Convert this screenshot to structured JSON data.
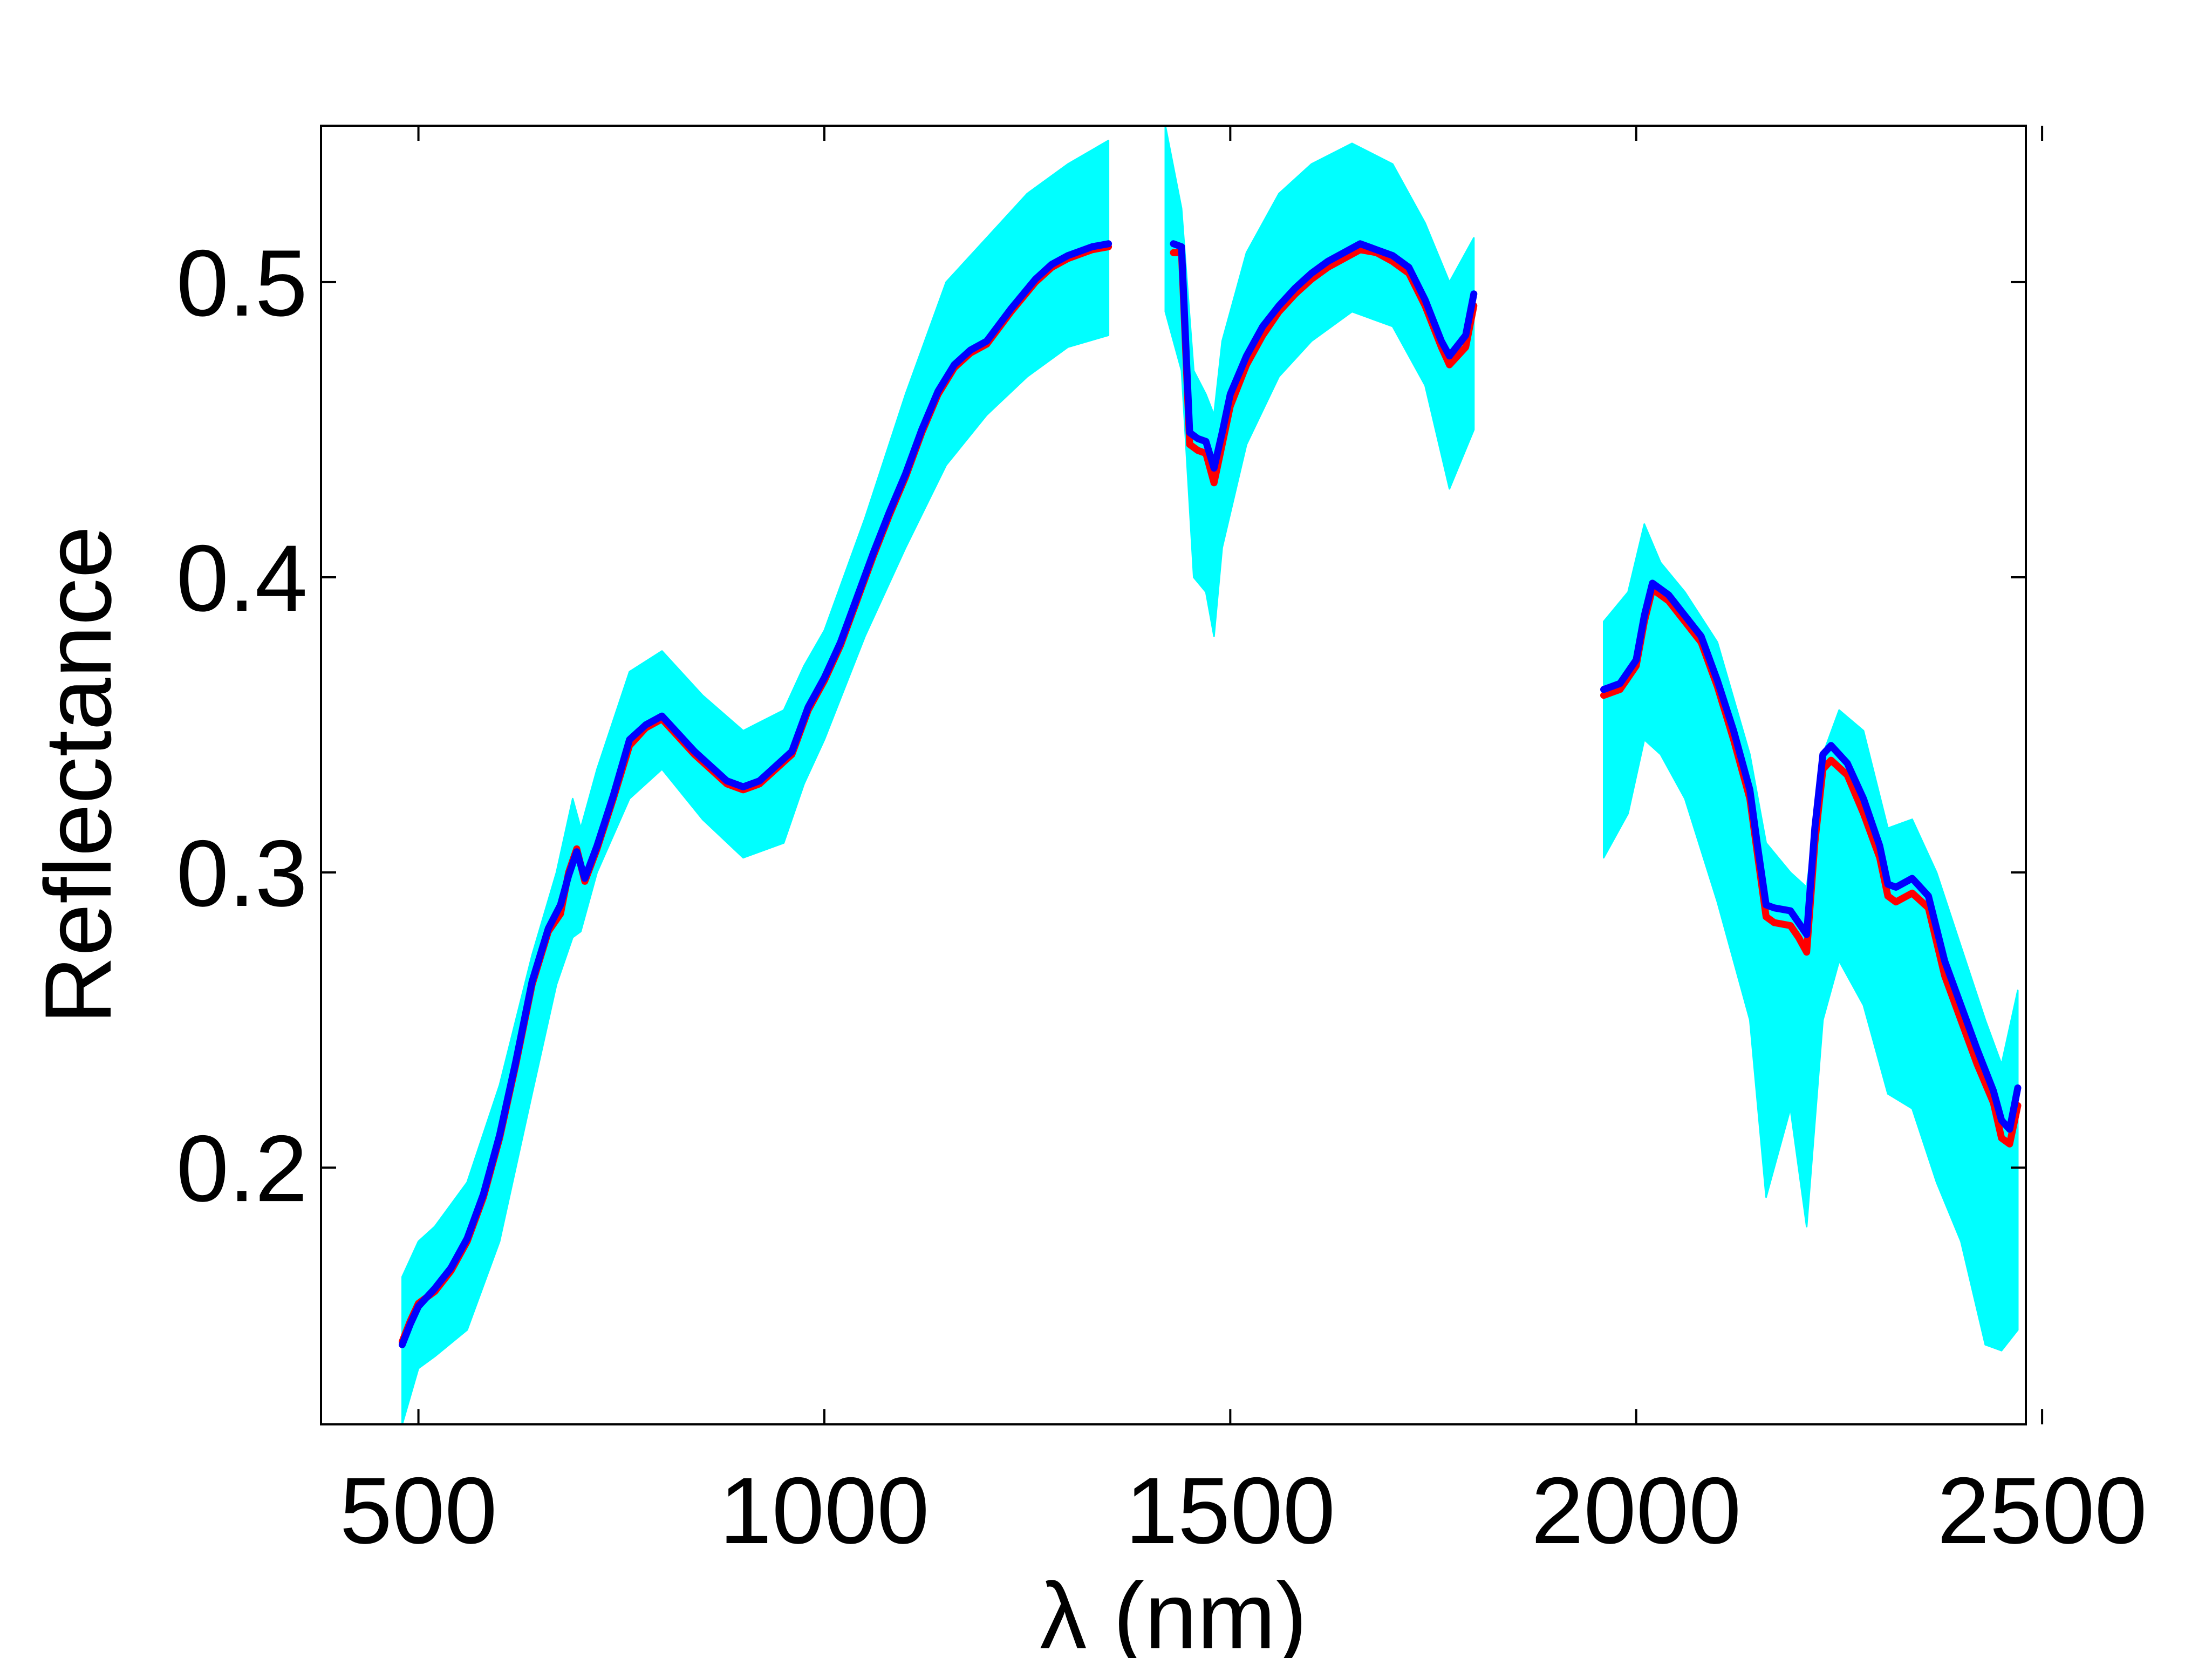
{
  "chart_data": {
    "type": "line",
    "title": "",
    "xlabel": "λ (nm)",
    "ylabel": "Reflectance",
    "xlim": [
      380,
      2480
    ],
    "ylim": [
      0.113,
      0.553
    ],
    "xticks": [
      500,
      1000,
      1500,
      2000,
      2500
    ],
    "xtick_labels": [
      "500",
      "1000",
      "1500",
      "2000",
      "2500"
    ],
    "yticks": [
      0.2,
      0.3,
      0.4,
      0.5
    ],
    "ytick_labels": [
      "0.2",
      "0.3",
      "0.4",
      "0.5"
    ],
    "grid": false,
    "legend": "none",
    "colors": {
      "band": "#00ffff",
      "red_series": "#ff0000",
      "blue_series": "#0000ff",
      "axes": "#000000"
    },
    "series": [
      {
        "color": "#00ffff",
        "style": "envelope",
        "segments": [
          {
            "x": [
              480,
              500,
              520,
              560,
              600,
              640,
              670,
              690,
              700,
              720,
              760,
              800,
              850,
              900,
              950,
              975,
              1000,
              1050,
              1100,
              1150,
              1200,
              1250,
              1300,
              1350
            ],
            "lower": [
              0.113,
              0.132,
              0.136,
              0.145,
              0.175,
              0.225,
              0.262,
              0.278,
              0.28,
              0.3,
              0.325,
              0.335,
              0.318,
              0.305,
              0.31,
              0.33,
              0.345,
              0.38,
              0.41,
              0.438,
              0.455,
              0.468,
              0.478,
              0.482
            ],
            "upper": [
              0.163,
              0.175,
              0.18,
              0.195,
              0.228,
              0.272,
              0.3,
              0.325,
              0.315,
              0.335,
              0.368,
              0.375,
              0.36,
              0.348,
              0.355,
              0.37,
              0.382,
              0.42,
              0.462,
              0.5,
              0.515,
              0.53,
              0.54,
              0.548
            ]
          },
          {
            "x": [
              1420,
              1440,
              1455,
              1470,
              1480,
              1490,
              1520,
              1560,
              1600,
              1650,
              1700,
              1740,
              1770,
              1800
            ],
            "lower": [
              0.49,
              0.47,
              0.4,
              0.395,
              0.38,
              0.41,
              0.445,
              0.468,
              0.48,
              0.49,
              0.485,
              0.465,
              0.43,
              0.45
            ],
            "upper": [
              0.553,
              0.525,
              0.47,
              0.462,
              0.455,
              0.48,
              0.51,
              0.53,
              0.54,
              0.547,
              0.54,
              0.52,
              0.5,
              0.515
            ]
          },
          {
            "x": [
              1960,
              1990,
              2010,
              2030,
              2060,
              2100,
              2140,
              2160,
              2190,
              2210,
              2230,
              2250,
              2280,
              2310,
              2340,
              2370,
              2400,
              2430,
              2450,
              2470
            ],
            "lower": [
              0.305,
              0.32,
              0.345,
              0.34,
              0.325,
              0.29,
              0.25,
              0.19,
              0.22,
              0.18,
              0.25,
              0.27,
              0.255,
              0.225,
              0.22,
              0.195,
              0.175,
              0.14,
              0.138,
              0.145
            ],
            "upper": [
              0.385,
              0.395,
              0.418,
              0.405,
              0.395,
              0.378,
              0.34,
              0.31,
              0.3,
              0.295,
              0.34,
              0.355,
              0.348,
              0.315,
              0.318,
              0.3,
              0.275,
              0.25,
              0.235,
              0.26
            ]
          }
        ]
      },
      {
        "color": "#ff0000",
        "style": "line",
        "segments": [
          {
            "x": [
              480,
              490,
              500,
              520,
              540,
              560,
              580,
              600,
              620,
              640,
              660,
              675,
              685,
              695,
              705,
              720,
              740,
              760,
              780,
              800,
              820,
              840,
              860,
              880,
              900,
              920,
              940,
              960,
              980,
              1000,
              1020,
              1040,
              1060,
              1080,
              1100,
              1120,
              1140,
              1160,
              1180,
              1200,
              1230,
              1260,
              1280,
              1300,
              1330,
              1350
            ],
            "y": [
              0.141,
              0.148,
              0.154,
              0.158,
              0.165,
              0.175,
              0.19,
              0.21,
              0.235,
              0.262,
              0.28,
              0.286,
              0.3,
              0.308,
              0.297,
              0.308,
              0.325,
              0.343,
              0.349,
              0.352,
              0.346,
              0.34,
              0.335,
              0.33,
              0.328,
              0.33,
              0.335,
              0.34,
              0.355,
              0.365,
              0.377,
              0.392,
              0.407,
              0.421,
              0.434,
              0.449,
              0.462,
              0.471,
              0.476,
              0.479,
              0.49,
              0.5,
              0.505,
              0.508,
              0.511,
              0.512
            ]
          },
          {
            "x": [
              1430,
              1440,
              1450,
              1460,
              1470,
              1480,
              1490,
              1500,
              1520,
              1540,
              1560,
              1580,
              1600,
              1620,
              1640,
              1660,
              1680,
              1700,
              1720,
              1740,
              1760,
              1770,
              1790,
              1800
            ],
            "y": [
              0.51,
              0.51,
              0.445,
              0.443,
              0.442,
              0.432,
              0.445,
              0.458,
              0.472,
              0.482,
              0.49,
              0.496,
              0.501,
              0.505,
              0.508,
              0.511,
              0.51,
              0.507,
              0.503,
              0.492,
              0.478,
              0.472,
              0.478,
              0.492
            ]
          },
          {
            "x": [
              1960,
              1980,
              2000,
              2010,
              2020,
              2040,
              2060,
              2080,
              2100,
              2120,
              2140,
              2150,
              2160,
              2170,
              2190,
              2200,
              2210,
              2220,
              2230,
              2240,
              2260,
              2280,
              2300,
              2310,
              2320,
              2340,
              2360,
              2380,
              2400,
              2420,
              2440,
              2450,
              2460,
              2470
            ],
            "y": [
              0.36,
              0.362,
              0.37,
              0.385,
              0.396,
              0.392,
              0.385,
              0.378,
              0.363,
              0.345,
              0.325,
              0.305,
              0.285,
              0.283,
              0.282,
              0.278,
              0.273,
              0.31,
              0.335,
              0.338,
              0.333,
              0.32,
              0.305,
              0.292,
              0.29,
              0.293,
              0.288,
              0.265,
              0.25,
              0.235,
              0.222,
              0.21,
              0.208,
              0.221
            ]
          }
        ]
      },
      {
        "color": "#0000ff",
        "style": "line",
        "segments": [
          {
            "x": [
              480,
              490,
              500,
              520,
              540,
              560,
              580,
              600,
              620,
              640,
              660,
              675,
              685,
              695,
              705,
              720,
              740,
              760,
              780,
              800,
              820,
              840,
              860,
              880,
              900,
              920,
              940,
              960,
              980,
              1000,
              1020,
              1040,
              1060,
              1080,
              1100,
              1120,
              1140,
              1160,
              1180,
              1200,
              1230,
              1260,
              1280,
              1300,
              1330,
              1350
            ],
            "y": [
              0.14,
              0.147,
              0.153,
              0.159,
              0.166,
              0.176,
              0.191,
              0.211,
              0.236,
              0.263,
              0.281,
              0.289,
              0.299,
              0.307,
              0.298,
              0.309,
              0.326,
              0.345,
              0.35,
              0.353,
              0.347,
              0.341,
              0.336,
              0.331,
              0.329,
              0.331,
              0.336,
              0.341,
              0.356,
              0.366,
              0.378,
              0.393,
              0.408,
              0.422,
              0.435,
              0.45,
              0.463,
              0.472,
              0.477,
              0.48,
              0.491,
              0.501,
              0.506,
              0.509,
              0.512,
              0.513
            ]
          },
          {
            "x": [
              1430,
              1440,
              1450,
              1460,
              1470,
              1480,
              1490,
              1500,
              1520,
              1540,
              1560,
              1580,
              1600,
              1620,
              1640,
              1660,
              1680,
              1700,
              1720,
              1740,
              1760,
              1770,
              1790,
              1800
            ],
            "y": [
              0.513,
              0.512,
              0.449,
              0.447,
              0.446,
              0.437,
              0.449,
              0.462,
              0.475,
              0.485,
              0.492,
              0.498,
              0.503,
              0.507,
              0.51,
              0.513,
              0.511,
              0.509,
              0.505,
              0.494,
              0.48,
              0.475,
              0.482,
              0.496
            ]
          },
          {
            "x": [
              1960,
              1980,
              2000,
              2010,
              2020,
              2040,
              2060,
              2080,
              2100,
              2120,
              2140,
              2150,
              2160,
              2170,
              2190,
              2200,
              2210,
              2220,
              2230,
              2240,
              2260,
              2280,
              2300,
              2310,
              2320,
              2340,
              2360,
              2380,
              2400,
              2420,
              2440,
              2450,
              2460,
              2470
            ],
            "y": [
              0.362,
              0.364,
              0.372,
              0.387,
              0.398,
              0.394,
              0.387,
              0.38,
              0.365,
              0.348,
              0.328,
              0.308,
              0.289,
              0.288,
              0.287,
              0.283,
              0.279,
              0.315,
              0.34,
              0.343,
              0.337,
              0.325,
              0.309,
              0.296,
              0.295,
              0.298,
              0.292,
              0.27,
              0.255,
              0.24,
              0.226,
              0.216,
              0.213,
              0.227
            ]
          }
        ]
      }
    ]
  }
}
